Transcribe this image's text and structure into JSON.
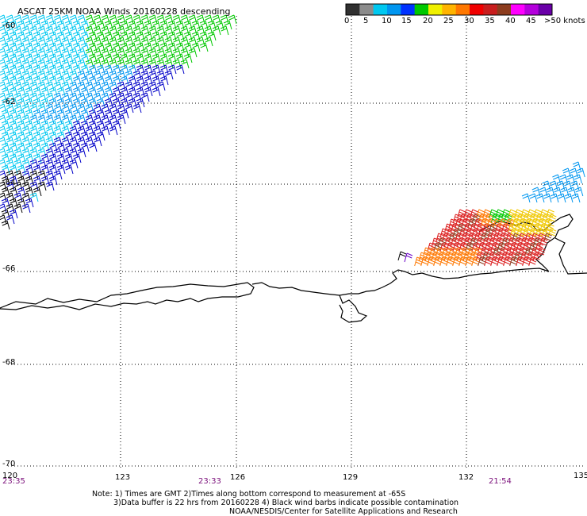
{
  "title": "ASCAT 25KM NOAA Winds 20160228 descending",
  "colorbar": {
    "segments": [
      "#303030",
      "#8c8c8c",
      "#00c8f0",
      "#0096f0",
      "#0032ff",
      "#00c800",
      "#f0f000",
      "#ffb400",
      "#ff7800",
      "#f00000",
      "#c81e1e",
      "#8c3c1e",
      "#ff00ff",
      "#b400dc",
      "#6a00a8"
    ],
    "labels": [
      "0",
      "5",
      "10",
      "15",
      "20",
      "25",
      "30",
      "35",
      "40",
      "45",
      ">50 knots"
    ]
  },
  "axes": {
    "lat_labels": [
      "-60",
      "-62",
      "-64",
      "-66",
      "-68",
      "-70"
    ],
    "lon_labels": [
      "120",
      "123",
      "126",
      "129",
      "132",
      "135"
    ]
  },
  "times": [
    "23:35",
    "23:33",
    "21:54"
  ],
  "notes": [
    "Note: 1) Times are GMT 2)Times along bottom correspond to measurement at -65S",
    "3)Data buffer is 22 hrs from 20160228 4) Black wind barbs indicate possible contamination",
    "NOAA/NESDIS/Center for Satellite Applications and Research"
  ],
  "colors": {
    "barb_dark_blue": "#0000c8",
    "barb_blue": "#0096f0",
    "barb_cyan": "#00c8f0",
    "barb_green": "#00c800",
    "barb_black": "#000000",
    "barb_red": "#dc1e1e",
    "barb_orange": "#ff7800",
    "barb_yellow": "#f0c800",
    "barb_brown": "#8c3c1e",
    "barb_purple": "#6a00c8"
  }
}
